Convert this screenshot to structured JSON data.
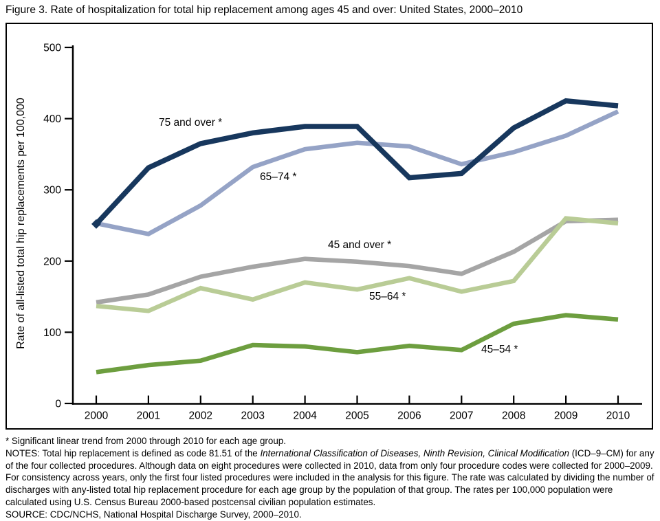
{
  "page": {
    "title": "Figure 3. Rate of hospitalization for total hip replacement among ages 45 and over: United States, 2000–2010"
  },
  "chart_data": {
    "type": "line",
    "title": "Figure 3. Rate of hospitalization for total hip replacement among ages 45 and over: United States, 2000–2010",
    "xlabel": "",
    "ylabel": "Rate of all-listed total hip replacements per 100,000",
    "x": [
      2000,
      2001,
      2002,
      2003,
      2004,
      2005,
      2006,
      2007,
      2008,
      2009,
      2010
    ],
    "ylim": [
      0,
      500
    ],
    "yticks": [
      0,
      100,
      200,
      300,
      400,
      500
    ],
    "grid": false,
    "legend": "inline-labels-next-to-lines",
    "axis_color": "#000000",
    "series": [
      {
        "name": "45-and-over",
        "label": "45 and over *",
        "color": "#a5a5a5",
        "values": [
          142,
          153,
          178,
          192,
          203,
          199,
          193,
          182,
          213,
          256,
          258
        ]
      },
      {
        "name": "55-64",
        "label": "55–64 *",
        "color": "#b9cc96",
        "values": [
          137,
          130,
          162,
          146,
          170,
          160,
          176,
          157,
          172,
          260,
          253
        ]
      },
      {
        "name": "45-54",
        "label": "45–54 *",
        "color": "#6d9e3f",
        "values": [
          44,
          54,
          60,
          82,
          80,
          72,
          81,
          75,
          112,
          124,
          118
        ]
      },
      {
        "name": "65-74",
        "label": "65–74 *",
        "color": "#95a3c6",
        "values": [
          253,
          238,
          278,
          332,
          357,
          366,
          361,
          336,
          353,
          376,
          410
        ]
      },
      {
        "name": "75-and-over",
        "label": "75 and over *",
        "color": "#17375d",
        "values": [
          252,
          331,
          365,
          380,
          389,
          389,
          317,
          323,
          387,
          425,
          418
        ],
        "marker_first_point": true
      }
    ]
  },
  "footnotes": {
    "significance": "* Significant linear trend from 2000 through 2010 for each age group.",
    "notes_prefix": "NOTES: Total hip replacement is defined as code 81.51 of the ",
    "notes_italic": "International Classification of Diseases, Ninth Revision, Clinical Modification",
    "notes_suffix": " (ICD–9–CM) for any of the four collected procedures. Although data on eight procedures were collected in 2010, data from only four procedure codes were collected for 2000–2009. For consistency across years, only the first four listed procedures were included in the analysis for this figure. The rate was calculated by dividing the number of discharges with any-listed total hip replacement procedure for each age group by the population of that group. The rates per 100,000 population were calculated using U.S. Census Bureau 2000-based postcensal civilian population estimates.",
    "source": "SOURCE: CDC/NCHS, National Hospital Discharge Survey, 2000–2010."
  }
}
